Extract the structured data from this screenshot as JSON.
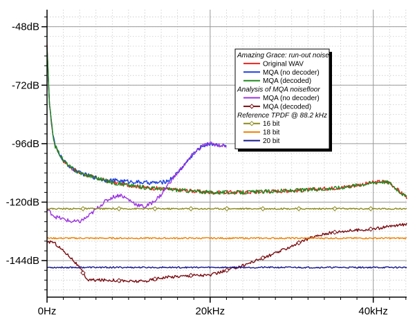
{
  "chart_data": {
    "type": "line",
    "title": "",
    "xlabel": "",
    "ylabel": "",
    "xlim": [
      0,
      44.1
    ],
    "ylim": [
      -159,
      -41
    ],
    "x_ticks": [
      {
        "value": 0,
        "label": "0Hz"
      },
      {
        "value": 20,
        "label": "20kHz"
      },
      {
        "value": 40,
        "label": "40kHz"
      }
    ],
    "y_ticks": [
      {
        "value": -48,
        "label": "-48dB"
      },
      {
        "value": -72,
        "label": "-72dB"
      },
      {
        "value": -96,
        "label": "-96dB"
      },
      {
        "value": -120,
        "label": "-120dB"
      },
      {
        "value": -144,
        "label": "-144dB"
      }
    ],
    "grid": true,
    "legend_position": "top-right",
    "legend_groups": [
      {
        "heading": "Amazing Grace: run-out noise",
        "series": [
          "Original WAV",
          "MQA (no decoder)",
          "MQA (decoded)"
        ]
      },
      {
        "heading": "Analysis of MQA noisefloor",
        "series": [
          "MQA (no decoder)",
          "MQA (decoded)"
        ]
      },
      {
        "heading": "Reference TPDF @ 88.2 kHz",
        "series": [
          "16 bit",
          "18 bit",
          "20 bit"
        ]
      }
    ],
    "series": [
      {
        "name": "Original WAV",
        "color": "#e8231f",
        "marker": "none",
        "jitter": 0.8,
        "x": [
          0,
          0.3,
          0.7,
          1,
          1.5,
          2,
          3,
          4,
          5,
          6,
          7,
          8,
          10,
          12,
          14,
          16,
          18,
          20,
          24,
          28,
          32,
          36,
          38,
          40,
          41,
          42,
          43,
          44.1
        ],
        "y": [
          -56,
          -80,
          -92,
          -97,
          -100,
          -103,
          -106,
          -108,
          -109,
          -110,
          -111,
          -112,
          -113,
          -114,
          -114.5,
          -115,
          -115.5,
          -116,
          -116,
          -115.5,
          -115,
          -114,
          -113,
          -112,
          -111.5,
          -112,
          -115,
          -118
        ]
      },
      {
        "name": "MQA (no decoder)",
        "color": "#1a3ee0",
        "marker": "none",
        "jitter": 0.8,
        "x": [
          0,
          0.3,
          0.7,
          1,
          1.5,
          2,
          3,
          4,
          5,
          6,
          7,
          8,
          10,
          12,
          14,
          15,
          16,
          17,
          18,
          19,
          20,
          21,
          22
        ],
        "y": [
          -56,
          -80,
          -92,
          -97,
          -100,
          -103,
          -106,
          -108,
          -109,
          -110,
          -111,
          -111,
          -111.5,
          -112,
          -112,
          -111,
          -108,
          -104,
          -100,
          -97,
          -96,
          -96.5,
          -97
        ]
      },
      {
        "name": "MQA (decoded)",
        "color": "#1f8a1f",
        "marker": "none",
        "jitter": 0.8,
        "x": [
          0,
          0.3,
          0.7,
          1,
          1.5,
          2,
          3,
          4,
          5,
          6,
          7,
          8,
          10,
          12,
          14,
          16,
          18,
          20,
          24,
          28,
          32,
          36,
          38,
          40,
          41,
          42,
          43,
          44.1
        ],
        "y": [
          -56,
          -80,
          -92,
          -97,
          -100,
          -103,
          -106,
          -108,
          -109,
          -110,
          -111,
          -112,
          -113,
          -114,
          -114.5,
          -115,
          -115.5,
          -116,
          -116,
          -115.5,
          -115,
          -114,
          -113,
          -112,
          -111.5,
          -112,
          -115,
          -118
        ]
      },
      {
        "name": "MQA (no decoder)",
        "color": "#9a33e0",
        "marker": "none",
        "jitter": 0.8,
        "x": [
          0,
          1,
          2,
          3,
          4,
          5,
          6,
          7,
          8,
          9,
          10,
          11,
          12,
          13,
          14,
          15,
          16,
          17,
          18,
          19,
          20,
          21,
          22
        ],
        "y": [
          -123,
          -126,
          -127,
          -128,
          -128,
          -126,
          -123,
          -120,
          -118,
          -117,
          -119,
          -121,
          -122,
          -120,
          -117,
          -112,
          -108,
          -104,
          -100,
          -97,
          -96,
          -96.5,
          -97
        ]
      },
      {
        "name": "MQA (decoded)",
        "color": "#7a0d12",
        "marker": "diamond",
        "jitter": 0.6,
        "x": [
          0,
          0.5,
          1,
          2,
          3,
          4,
          5,
          6,
          8,
          10,
          12,
          14,
          16,
          18,
          20,
          22,
          24,
          26,
          28,
          30,
          32,
          34,
          36,
          38,
          40,
          42,
          44.1
        ],
        "y": [
          -137,
          -136,
          -137,
          -140,
          -143,
          -147,
          -152,
          -152,
          -152,
          -152.5,
          -152.5,
          -151,
          -150.5,
          -150,
          -150,
          -148,
          -146,
          -143.5,
          -141,
          -138,
          -135,
          -133,
          -132,
          -131.5,
          -131,
          -130,
          -129
        ]
      },
      {
        "name": "16 bit",
        "color": "#8a8a1a",
        "marker": "diamond",
        "jitter": 0.3,
        "x": [
          0,
          44.1
        ],
        "y": [
          -122.7,
          -122.7
        ]
      },
      {
        "name": "18 bit",
        "color": "#f08000",
        "marker": "none",
        "jitter": 0.3,
        "x": [
          0,
          44.1
        ],
        "y": [
          -134.8,
          -134.8
        ]
      },
      {
        "name": "20 bit",
        "color": "#16178a",
        "marker": "none",
        "jitter": 0.3,
        "x": [
          0,
          44.1
        ],
        "y": [
          -146.8,
          -146.8
        ]
      }
    ]
  }
}
